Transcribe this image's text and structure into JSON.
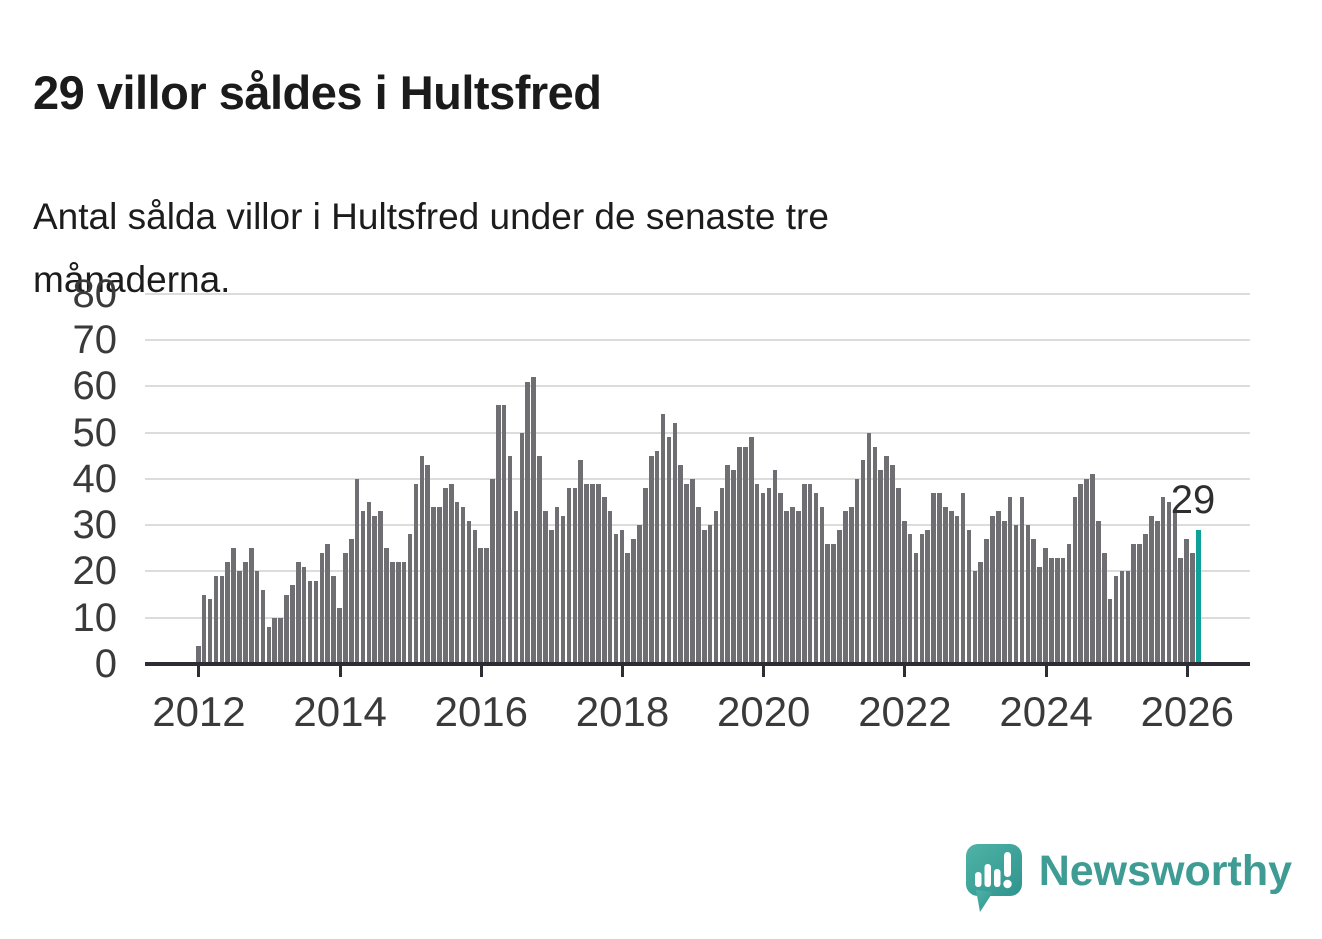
{
  "header": {
    "title": "29 villor såldes i Hultsfred",
    "subtitle_line1": "Antal sålda villor i Hultsfred under de senaste tre",
    "subtitle_line2": "månaderna."
  },
  "chart_data": {
    "type": "bar",
    "title": "29 villor såldes i Hultsfred",
    "description": "Antal sålda villor i Hultsfred under de senaste tre månaderna.",
    "xlabel": "",
    "ylabel": "",
    "ylim": [
      0,
      83
    ],
    "yticks": [
      0,
      10,
      20,
      30,
      40,
      50,
      60,
      70,
      80
    ],
    "xticks": [
      2012,
      2014,
      2016,
      2018,
      2020,
      2022,
      2024,
      2026
    ],
    "grid": true,
    "frequency": "monthly",
    "start": "2012-01",
    "end": "2026-03",
    "bar_color": "#6E6E73",
    "series_by_year": [
      {
        "year": 2012,
        "monthly": [
          4,
          15,
          14,
          19,
          19,
          22,
          25,
          20,
          22,
          25,
          20,
          16
        ]
      },
      {
        "year": 2013,
        "monthly": [
          8,
          10,
          10,
          15,
          17,
          22,
          21,
          18,
          18,
          24,
          26,
          19
        ]
      },
      {
        "year": 2014,
        "monthly": [
          12,
          24,
          27,
          40,
          33,
          35,
          32,
          33,
          25,
          22,
          22,
          22
        ]
      },
      {
        "year": 2015,
        "monthly": [
          28,
          39,
          45,
          43,
          34,
          34,
          38,
          39,
          35,
          34,
          31,
          29
        ]
      },
      {
        "year": 2016,
        "monthly": [
          25,
          25,
          40,
          56,
          56,
          45,
          33,
          50,
          61,
          62,
          45,
          33
        ]
      },
      {
        "year": 2017,
        "monthly": [
          29,
          34,
          32,
          38,
          38,
          44,
          39,
          39,
          39,
          36,
          33,
          28
        ]
      },
      {
        "year": 2018,
        "monthly": [
          29,
          24,
          27,
          30,
          38,
          45,
          46,
          54,
          49,
          52,
          43,
          39
        ]
      },
      {
        "year": 2019,
        "monthly": [
          40,
          34,
          29,
          30,
          33,
          38,
          43,
          42,
          47,
          47,
          49,
          39
        ]
      },
      {
        "year": 2020,
        "monthly": [
          37,
          38,
          42,
          37,
          33,
          34,
          33,
          39,
          39,
          37,
          34,
          26
        ]
      },
      {
        "year": 2021,
        "monthly": [
          26,
          29,
          33,
          34,
          40,
          44,
          50,
          47,
          42,
          45,
          43,
          38
        ]
      },
      {
        "year": 2022,
        "monthly": [
          31,
          28,
          24,
          28,
          29,
          37,
          37,
          34,
          33,
          32,
          37,
          29
        ]
      },
      {
        "year": 2023,
        "monthly": [
          20,
          22,
          27,
          32,
          33,
          31,
          36,
          30,
          36,
          30,
          27,
          21
        ]
      },
      {
        "year": 2024,
        "monthly": [
          25,
          23,
          23,
          23,
          26,
          36,
          39,
          40,
          41,
          31,
          24,
          14
        ]
      },
      {
        "year": 2025,
        "monthly": [
          19,
          20,
          20,
          26,
          26,
          28,
          32,
          31,
          36,
          35,
          33,
          23
        ]
      },
      {
        "year": 2026,
        "monthly": [
          27,
          24,
          29
        ]
      }
    ],
    "highlight": {
      "position": "last",
      "value": 29,
      "label": "29",
      "color": "#0DA19A"
    }
  },
  "footer": {
    "brand": "Newsworthy",
    "brand_color": "#3E9C94",
    "logo_icon": "newsworthy-bubble-chart-icon"
  }
}
